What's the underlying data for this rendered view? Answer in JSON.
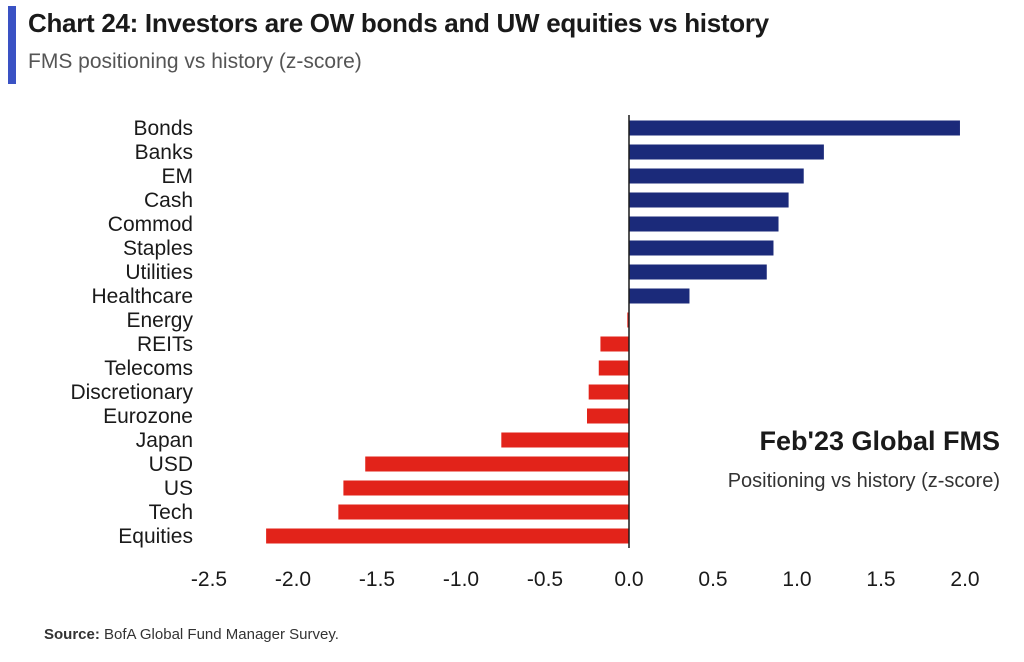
{
  "header": {
    "title": "Chart 24: Investors are OW bonds and UW equities vs history",
    "subtitle": "FMS positioning vs history (z-score)"
  },
  "footer": {
    "source_label": "Source:",
    "source_text": " BofA Global Fund Manager Survey."
  },
  "colors": {
    "accent": "#3a52c4",
    "positive": "#1b2a7a",
    "negative": "#e2231a",
    "axis": "#1a1a1a"
  },
  "chart_data": {
    "type": "bar",
    "orientation": "horizontal",
    "categories": [
      "Bonds",
      "Banks",
      "EM",
      "Cash",
      "Commod",
      "Staples",
      "Utilities",
      "Healthcare",
      "Energy",
      "REITs",
      "Telecoms",
      "Discretionary",
      "Eurozone",
      "Japan",
      "USD",
      "US",
      "Tech",
      "Equities"
    ],
    "values": [
      1.97,
      1.16,
      1.04,
      0.95,
      0.89,
      0.86,
      0.82,
      0.36,
      -0.01,
      -0.17,
      -0.18,
      -0.24,
      -0.25,
      -0.76,
      -1.57,
      -1.7,
      -1.73,
      -2.16
    ],
    "xlim": [
      -2.5,
      2.0
    ],
    "xticks": [
      "-2.5",
      "-2.0",
      "-1.5",
      "-1.0",
      "-0.5",
      "0.0",
      "0.5",
      "1.0",
      "1.5",
      "2.0"
    ],
    "xtick_values": [
      -2.5,
      -2.0,
      -1.5,
      -1.0,
      -0.5,
      0.0,
      0.5,
      1.0,
      1.5,
      2.0
    ],
    "annotation": {
      "title": "Feb'23 Global FMS",
      "subtitle": "Positioning vs history (z-score)"
    },
    "grid": false,
    "legend": "none"
  }
}
